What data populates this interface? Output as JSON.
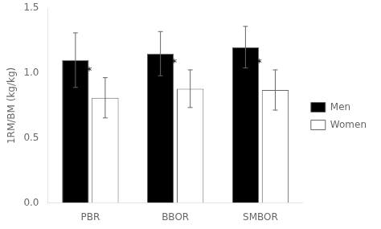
{
  "chart_data": {
    "type": "bar",
    "categories": [
      "PBR",
      "BBOR",
      "SMBOR"
    ],
    "series": [
      {
        "name": "Men",
        "color": "#000000",
        "values": [
          1.1,
          1.15,
          1.2
        ],
        "errors": [
          0.21,
          0.17,
          0.16
        ]
      },
      {
        "name": "Women",
        "color": "#ffffff",
        "values": [
          0.81,
          0.88,
          0.87
        ],
        "errors": [
          0.155,
          0.145,
          0.155
        ]
      }
    ],
    "ylabel": "1RM/BM (kg/kg)",
    "ylim": [
      0.0,
      1.5
    ],
    "yticks": [
      {
        "value": 0,
        "label": "0.0"
      },
      0.5,
      {
        "value": 1,
        "label": "1.0"
      },
      1.5
    ],
    "annotations": [
      {
        "text": "*",
        "series": "Women",
        "category": "PBR"
      },
      {
        "text": "*",
        "series": "Women",
        "category": "BBOR"
      },
      {
        "text": "*",
        "series": "Women",
        "category": "SMBOR"
      }
    ],
    "grid": false,
    "legend": "right"
  }
}
